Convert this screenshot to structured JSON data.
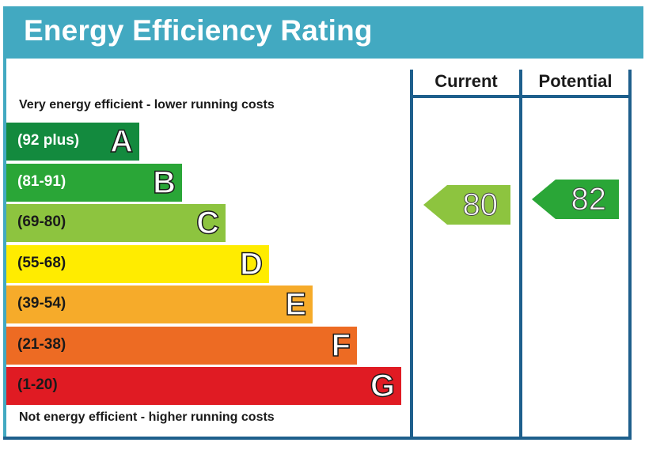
{
  "header": {
    "title": "Energy Efficiency Rating"
  },
  "columns": {
    "current": "Current",
    "potential": "Potential"
  },
  "captions": {
    "top": "Very energy efficient - lower running costs",
    "bottom": "Not energy efficient - higher running costs"
  },
  "chart_data": {
    "type": "bar",
    "bands": [
      {
        "letter": "A",
        "range": "(92 plus)",
        "color": "#138a3e",
        "text_color": "#ffffff"
      },
      {
        "letter": "B",
        "range": "(81-91)",
        "color": "#2aa637",
        "text_color": "#ffffff"
      },
      {
        "letter": "C",
        "range": "(69-80)",
        "color": "#8dc43f",
        "text_color": "#1a1a1a"
      },
      {
        "letter": "D",
        "range": "(55-68)",
        "color": "#ffec00",
        "text_color": "#1a1a1a"
      },
      {
        "letter": "E",
        "range": "(39-54)",
        "color": "#f6ab2a",
        "text_color": "#1a1a1a"
      },
      {
        "letter": "F",
        "range": "(21-38)",
        "color": "#ed6b23",
        "text_color": "#1a1a1a"
      },
      {
        "letter": "G",
        "range": "(1-20)",
        "color": "#e01b23",
        "text_color": "#1a1a1a"
      }
    ],
    "current": {
      "value": 80,
      "band": "C",
      "color": "#8dc43f"
    },
    "potential": {
      "value": 82,
      "band": "B",
      "color": "#2aa637"
    }
  }
}
